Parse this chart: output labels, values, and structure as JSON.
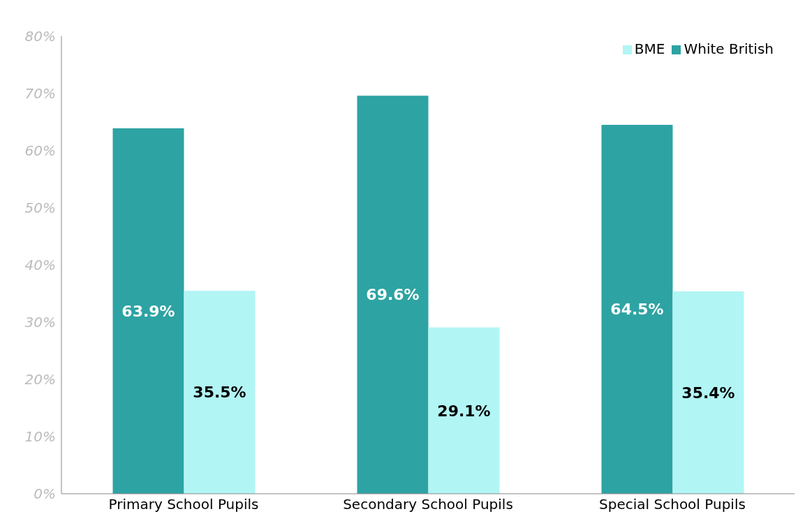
{
  "chart_data": {
    "type": "bar",
    "categories": [
      "Primary School Pupils",
      "Secondary School Pupils",
      "Special School Pupils"
    ],
    "series": [
      {
        "name": "White British",
        "color": "#2ea3a3",
        "values": [
          63.9,
          69.6,
          64.5
        ],
        "value_labels": [
          "63.9%",
          "69.6%",
          "64.5%"
        ]
      },
      {
        "name": "BME",
        "color": "#b2f5f5",
        "values": [
          35.5,
          29.1,
          35.4
        ],
        "value_labels": [
          "35.5%",
          "29.1%",
          "35.4%"
        ]
      }
    ],
    "ylim": [
      0,
      80
    ],
    "yticks": [
      {
        "value": 0,
        "label": "0%"
      },
      {
        "value": 10,
        "label": "10%"
      },
      {
        "value": 20,
        "label": "20%"
      },
      {
        "value": 30,
        "label": "30%"
      },
      {
        "value": 40,
        "label": "40%"
      },
      {
        "value": 50,
        "label": "50%"
      },
      {
        "value": 60,
        "label": "60%"
      },
      {
        "value": 70,
        "label": "70%"
      },
      {
        "value": 80,
        "label": "80%"
      }
    ],
    "grid": false,
    "legend": "top right"
  }
}
